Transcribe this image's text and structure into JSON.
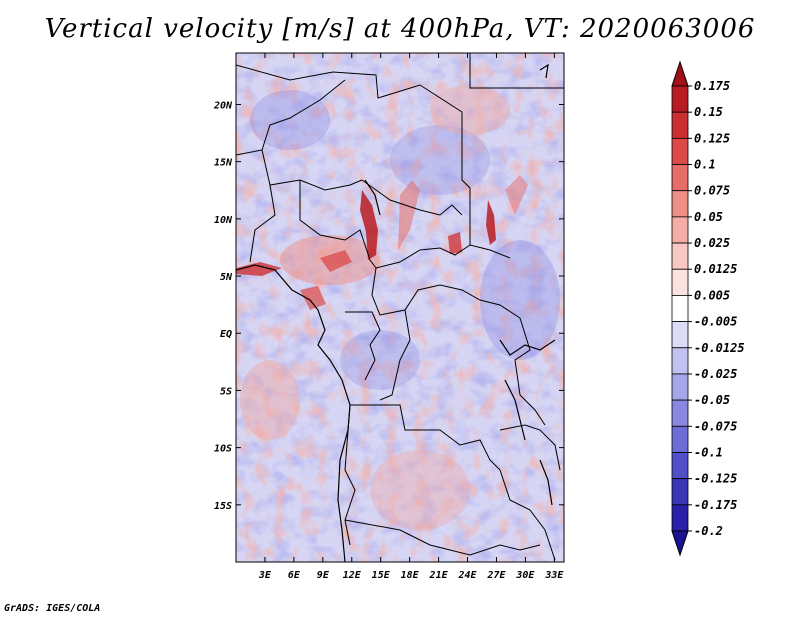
{
  "title": "Vertical velocity [m/s] at 400hPa, VT: 2020063006",
  "credit": "GrADS: IGES/COLA",
  "map": {
    "lon_range": [
      0,
      34
    ],
    "lat_range": [
      -20,
      24.5
    ],
    "x_ticks": [
      "3E",
      "6E",
      "9E",
      "12E",
      "15E",
      "18E",
      "21E",
      "24E",
      "27E",
      "30E",
      "33E"
    ],
    "y_ticks": [
      "20N",
      "15N",
      "10N",
      "5N",
      "EQ",
      "5S",
      "10S",
      "15S"
    ]
  },
  "colorbar": {
    "labels": [
      "0.175",
      "0.15",
      "0.125",
      "0.1",
      "0.075",
      "0.05",
      "0.025",
      "0.0125",
      "0.005",
      "-0.005",
      "-0.0125",
      "-0.025",
      "-0.05",
      "-0.075",
      "-0.1",
      "-0.125",
      "-0.175",
      "-0.2"
    ],
    "colors": [
      "#a01016",
      "#b81c22",
      "#cc2f32",
      "#dc4a48",
      "#e66e68",
      "#ee8f88",
      "#f4ada6",
      "#f8c9c4",
      "#fbe2df",
      "#ffffff",
      "#dcdcf6",
      "#c2c2f0",
      "#a6a6ea",
      "#8a88e0",
      "#6e6cd6",
      "#5250c8",
      "#3a36b8",
      "#2820a8",
      "#1c1294"
    ]
  }
}
